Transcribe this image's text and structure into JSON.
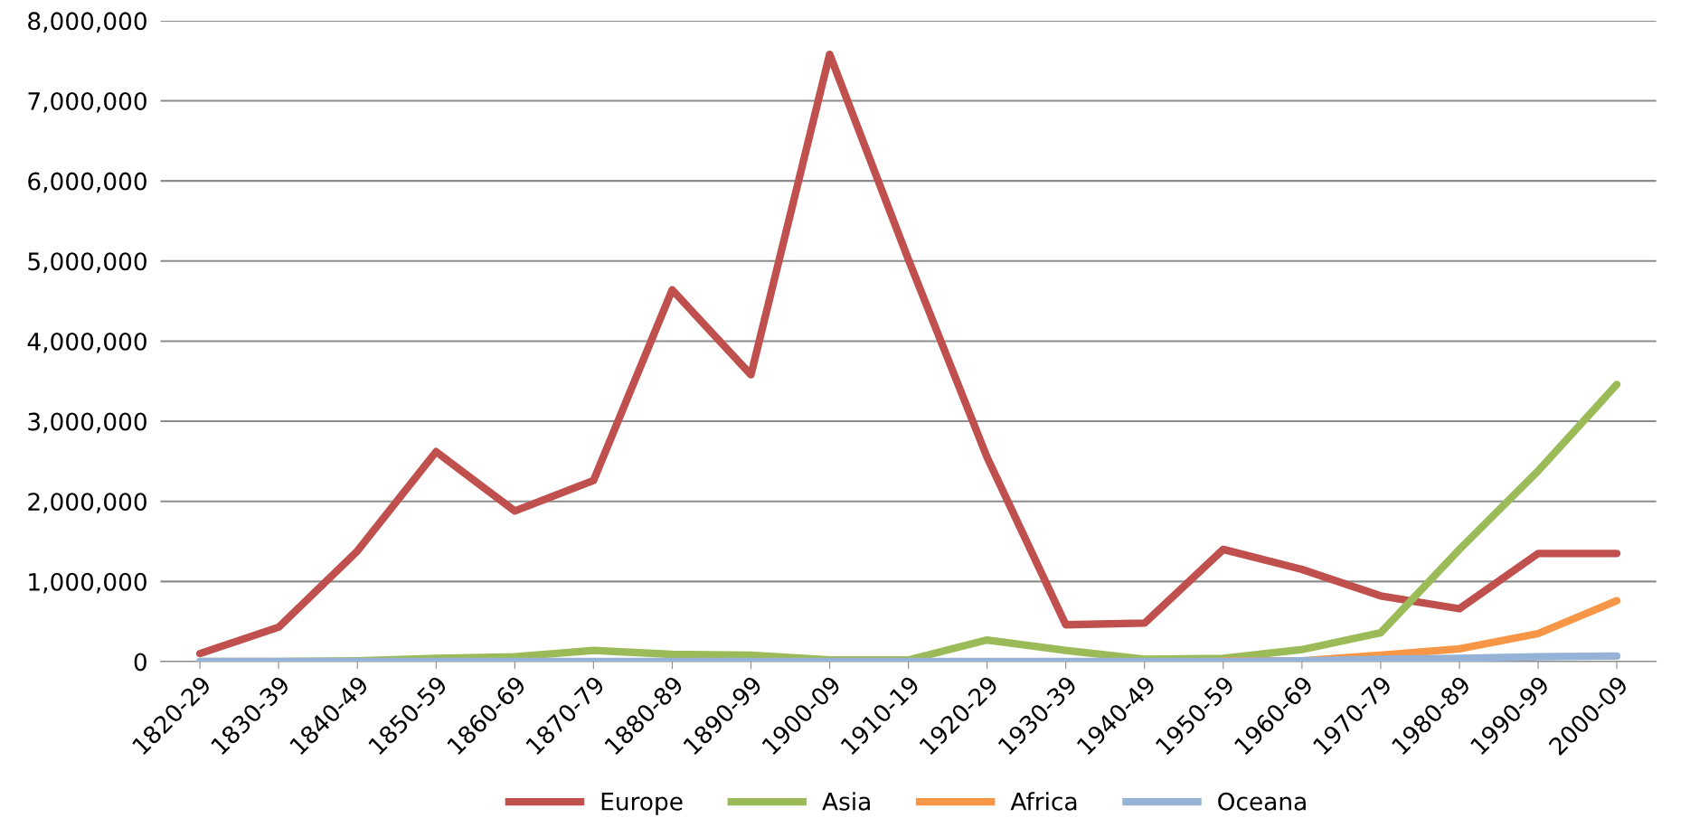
{
  "chart_data": {
    "type": "line",
    "categories": [
      "1820-29",
      "1830-39",
      "1840-49",
      "1850-59",
      "1860-69",
      "1870-79",
      "1880-89",
      "1890-99",
      "1900-09",
      "1910-19",
      "1920-29",
      "1930-39",
      "1940-49",
      "1950-59",
      "1960-69",
      "1970-79",
      "1980-89",
      "1990-99",
      "2000-09"
    ],
    "series": [
      {
        "name": "Europe",
        "color": "#c0504d",
        "values": [
          100000,
          430000,
          1380000,
          2620000,
          1880000,
          2260000,
          4640000,
          3580000,
          7580000,
          5020000,
          2550000,
          460000,
          480000,
          1400000,
          1150000,
          820000,
          660000,
          1350000,
          1350000
        ]
      },
      {
        "name": "Asia",
        "color": "#9bbb59",
        "values": [
          0,
          0,
          10000,
          40000,
          60000,
          140000,
          90000,
          80000,
          20000,
          20000,
          270000,
          140000,
          30000,
          40000,
          150000,
          360000,
          1400000,
          2380000,
          3460000
        ]
      },
      {
        "name": "Africa",
        "color": "#f79646",
        "values": [
          null,
          null,
          null,
          null,
          null,
          null,
          null,
          null,
          null,
          null,
          null,
          null,
          null,
          10000,
          10000,
          80000,
          160000,
          350000,
          760000
        ]
      },
      {
        "name": "Oceana",
        "color": "#95b3d7",
        "values": [
          0,
          0,
          0,
          0,
          0,
          0,
          0,
          0,
          0,
          0,
          0,
          0,
          0,
          0,
          10000,
          30000,
          40000,
          60000,
          70000
        ]
      }
    ],
    "ylim": [
      0,
      8000000
    ],
    "yticks": [
      {
        "value": 0,
        "label": "0"
      },
      {
        "value": 1000000,
        "label": "1,000,000"
      },
      {
        "value": 2000000,
        "label": "2,000,000"
      },
      {
        "value": 3000000,
        "label": "3,000,000"
      },
      {
        "value": 4000000,
        "label": "4,000,000"
      },
      {
        "value": 5000000,
        "label": "5,000,000"
      },
      {
        "value": 6000000,
        "label": "6,000,000"
      },
      {
        "value": 7000000,
        "label": "7,000,000"
      },
      {
        "value": 8000000,
        "label": "8,000,000"
      }
    ],
    "grid": "y",
    "legend": "bottom",
    "marker": "none",
    "line_style": "solid"
  }
}
